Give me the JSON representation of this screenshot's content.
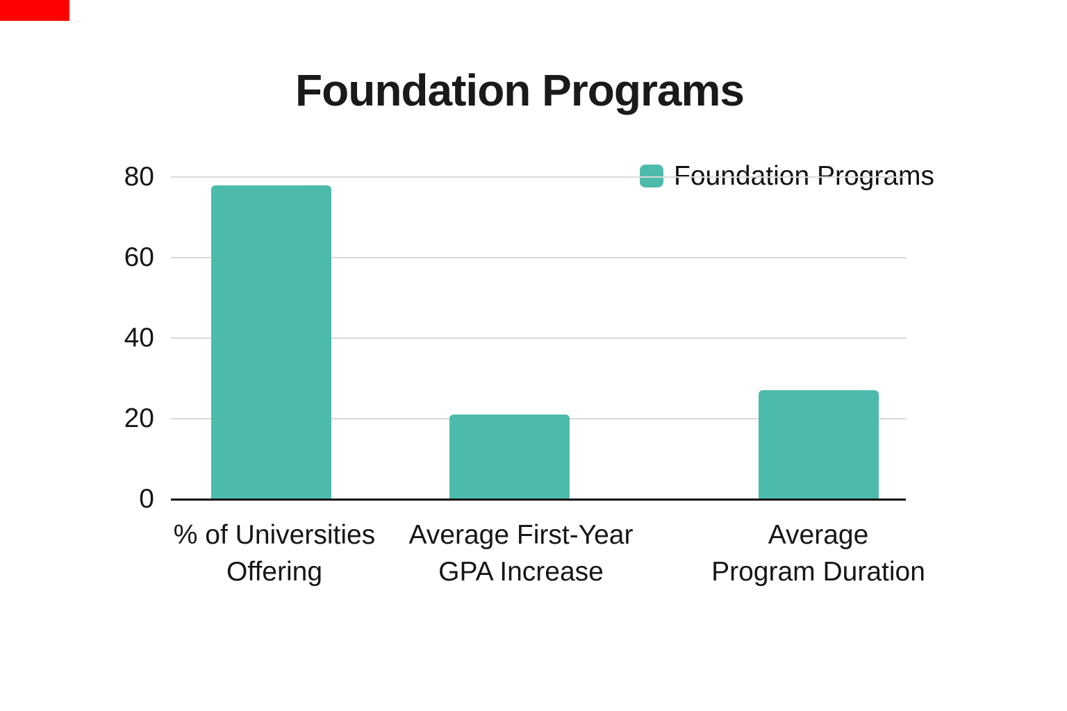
{
  "page": {
    "background": "#FFFFFF",
    "corner_marker_color": "#FF0000"
  },
  "header": {
    "title": "Foundation Programs"
  },
  "legend": {
    "label": "Foundation Programs",
    "swatch_color": "#4DBBAC",
    "position": "top-right"
  },
  "chart_data": {
    "type": "bar",
    "title": "Foundation Programs",
    "categories": [
      "% of Universities Offering",
      "Average First-Year GPA Increase",
      "Average Program Duration"
    ],
    "category_label_lines": [
      [
        "% of Universities",
        "Offering"
      ],
      [
        "Average First-Year",
        "GPA Increase"
      ],
      [
        "Average",
        "Program Duration"
      ]
    ],
    "series": [
      {
        "name": "Foundation Programs",
        "values": [
          78,
          21,
          27
        ]
      }
    ],
    "xlabel": "",
    "ylabel": "",
    "ylim": [
      0,
      80
    ],
    "yticks": [
      0,
      20,
      40,
      60,
      80
    ],
    "grid": "horizontal",
    "legend_position": "top-right",
    "bar_color": "#4DBBAC",
    "grid_color": "#D9D9D9",
    "axis_color": "#111111",
    "text_color": "#161616"
  }
}
